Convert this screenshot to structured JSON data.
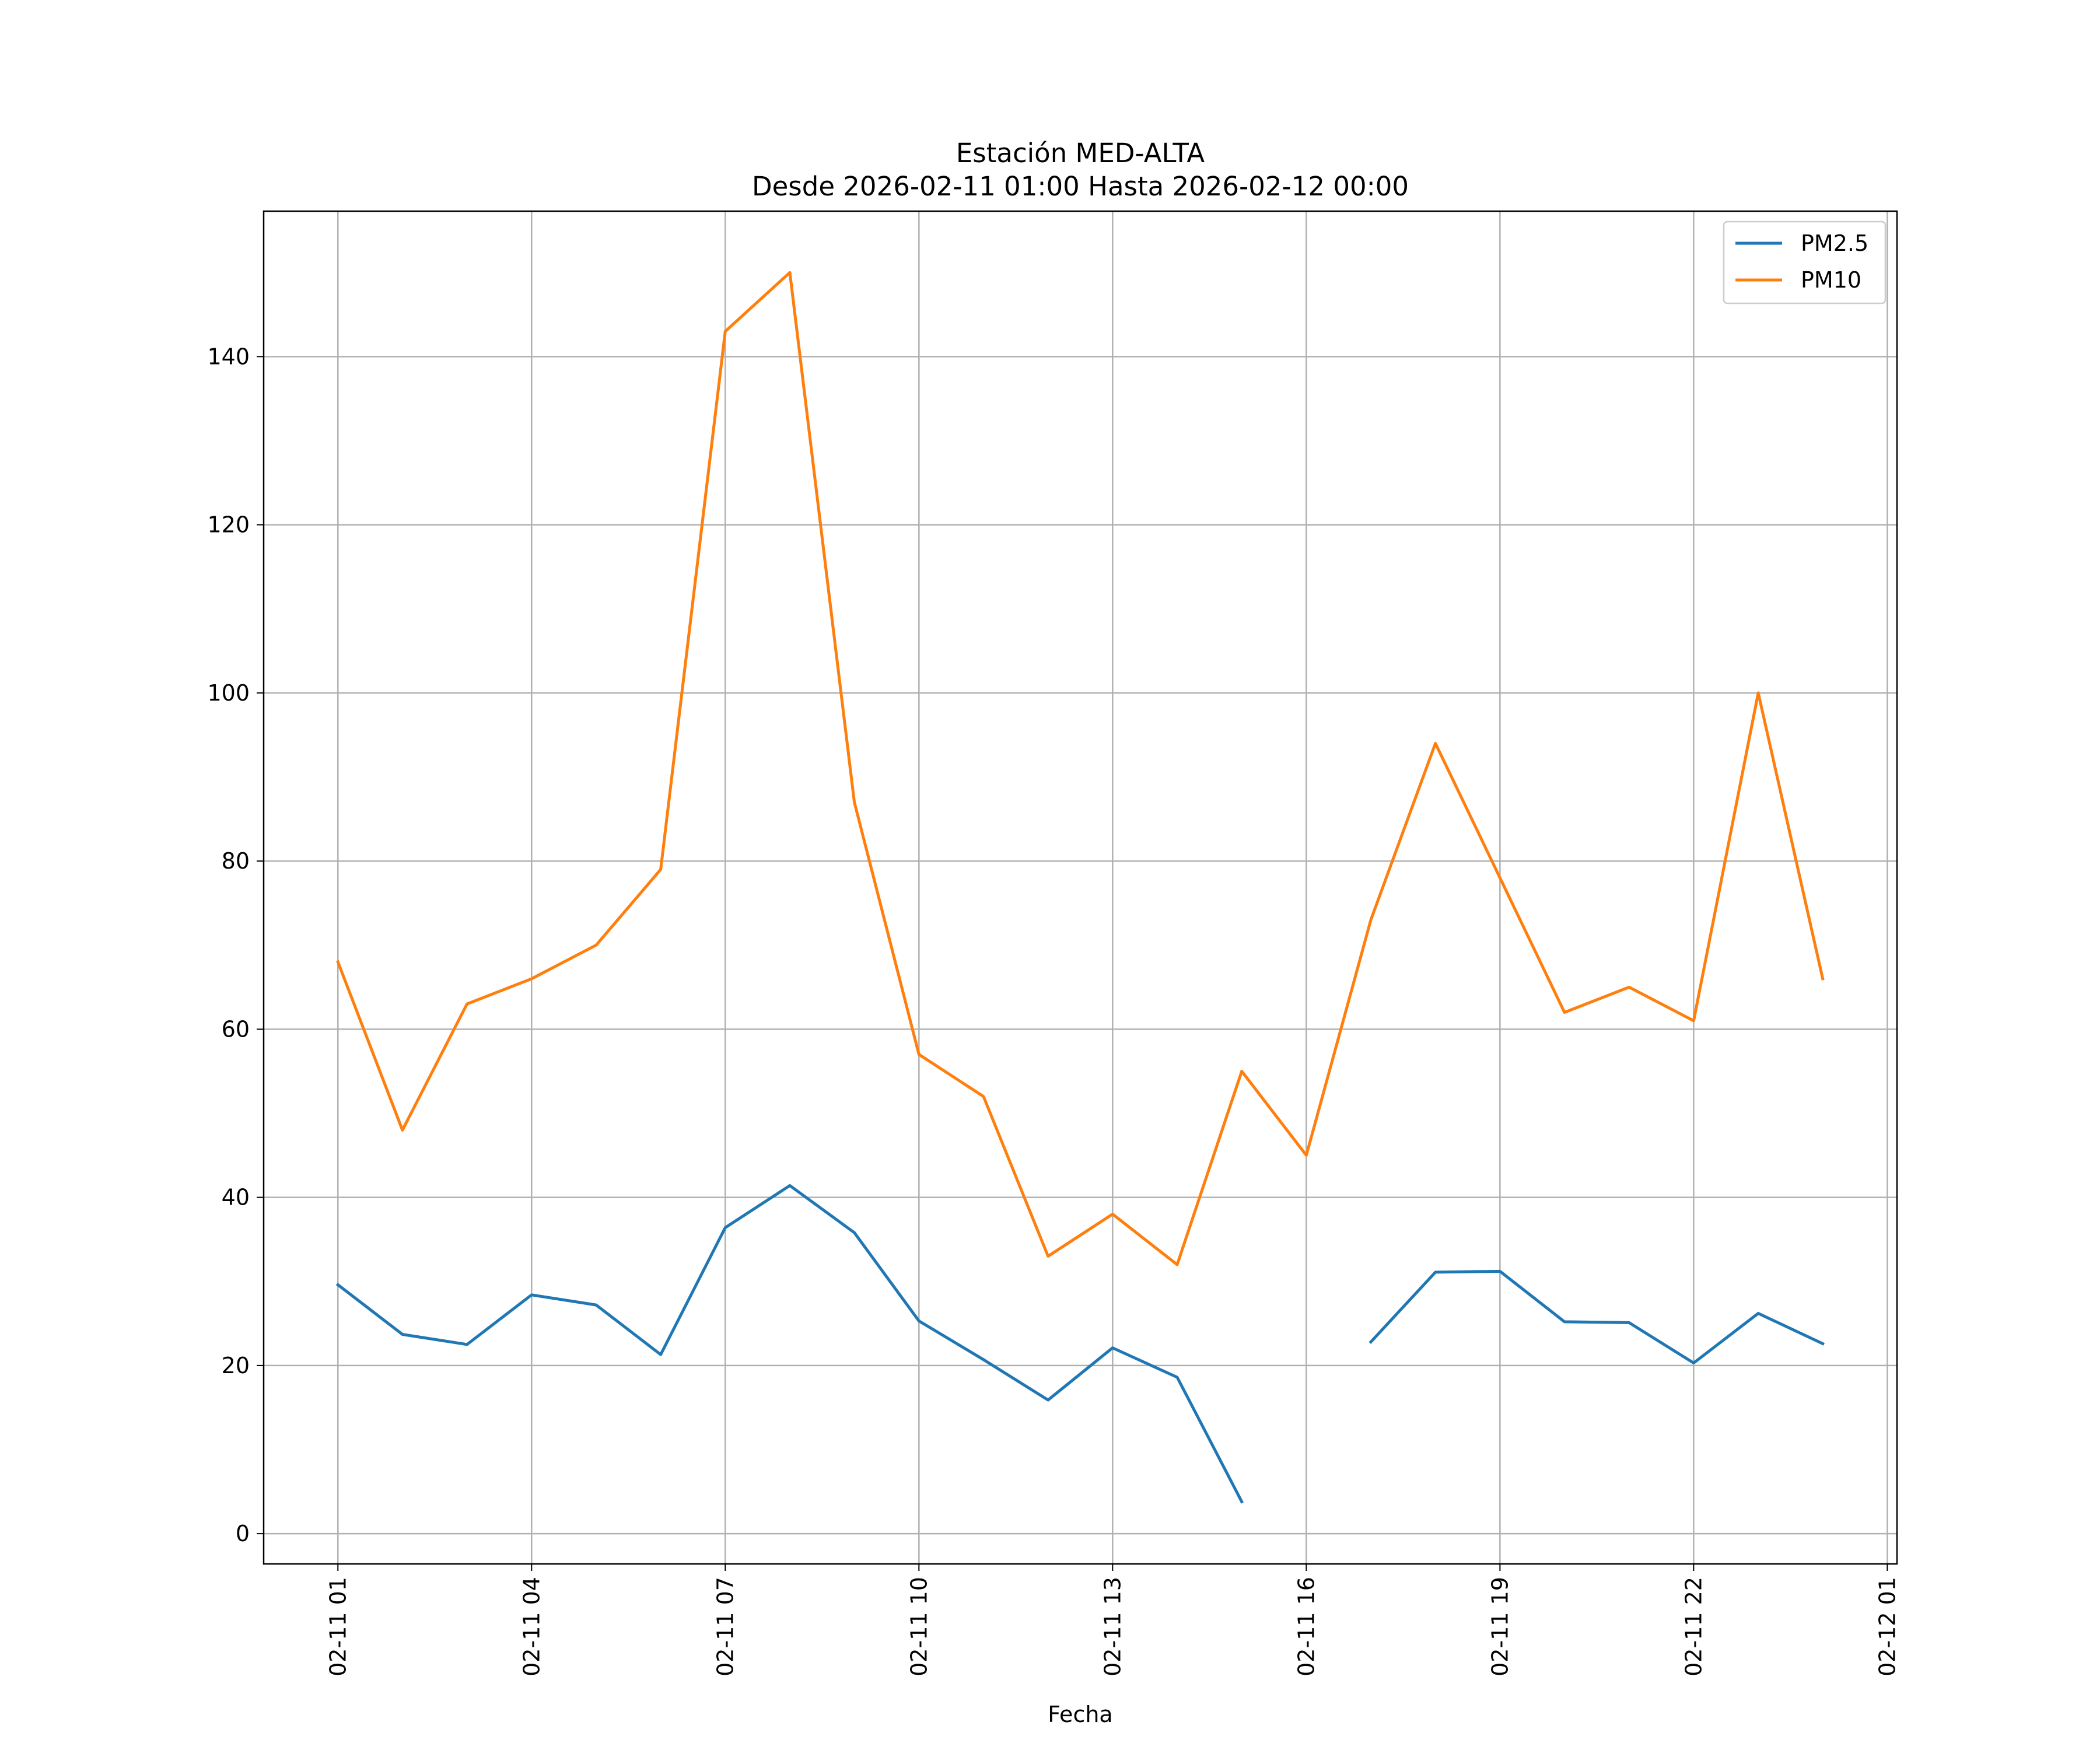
{
  "chart_data": {
    "type": "line",
    "title": "Estación MED-ALTA",
    "subtitle": "Desde 2026-02-11 01:00 Hasta 2026-02-12 00:00",
    "xlabel": "Fecha",
    "ylabel": "",
    "x": [
      "2026-02-11 01:00",
      "2026-02-11 02:00",
      "2026-02-11 03:00",
      "2026-02-11 04:00",
      "2026-02-11 05:00",
      "2026-02-11 06:00",
      "2026-02-11 07:00",
      "2026-02-11 08:00",
      "2026-02-11 09:00",
      "2026-02-11 10:00",
      "2026-02-11 11:00",
      "2026-02-11 12:00",
      "2026-02-11 13:00",
      "2026-02-11 14:00",
      "2026-02-11 15:00",
      "2026-02-11 16:00",
      "2026-02-11 17:00",
      "2026-02-11 18:00",
      "2026-02-11 19:00",
      "2026-02-11 20:00",
      "2026-02-11 21:00",
      "2026-02-11 22:00",
      "2026-02-11 23:00",
      "2026-02-12 00:00"
    ],
    "xlim": [
      "2026-02-10 23:51",
      "2026-02-12 01:09"
    ],
    "ylim": [
      -3.6,
      157.3
    ],
    "x_ticks": [
      {
        "label": "02-11 01",
        "value": "2026-02-11 01:00"
      },
      {
        "label": "02-11 04",
        "value": "2026-02-11 04:00"
      },
      {
        "label": "02-11 07",
        "value": "2026-02-11 07:00"
      },
      {
        "label": "02-11 10",
        "value": "2026-02-11 10:00"
      },
      {
        "label": "02-11 13",
        "value": "2026-02-11 13:00"
      },
      {
        "label": "02-11 16",
        "value": "2026-02-11 16:00"
      },
      {
        "label": "02-11 19",
        "value": "2026-02-11 19:00"
      },
      {
        "label": "02-11 22",
        "value": "2026-02-11 22:00"
      },
      {
        "label": "02-12 01",
        "value": "2026-02-12 01:00"
      }
    ],
    "y_ticks": [
      {
        "label": "0",
        "value": 0
      },
      {
        "label": "20",
        "value": 20
      },
      {
        "label": "40",
        "value": 40
      },
      {
        "label": "60",
        "value": 60
      },
      {
        "label": "80",
        "value": 80
      },
      {
        "label": "100",
        "value": 100
      },
      {
        "label": "120",
        "value": 120
      },
      {
        "label": "140",
        "value": 140
      }
    ],
    "grid": true,
    "legend_position": "top-right",
    "series": [
      {
        "name": "PM2.5",
        "color": "#1f77b4",
        "values": [
          29.6,
          23.7,
          22.5,
          28.4,
          27.2,
          21.3,
          36.4,
          41.4,
          35.8,
          25.3,
          20.7,
          15.9,
          22.1,
          18.6,
          3.8,
          null,
          22.8,
          31.1,
          31.2,
          25.2,
          25.1,
          20.3,
          26.2,
          22.6
        ]
      },
      {
        "name": "PM10",
        "color": "#ff7f0e",
        "values": [
          68,
          48,
          63,
          66,
          70,
          79,
          143,
          150,
          87,
          57,
          52,
          33,
          38,
          32,
          55,
          45,
          73,
          94,
          78,
          62,
          65,
          61,
          100,
          66
        ]
      }
    ]
  }
}
